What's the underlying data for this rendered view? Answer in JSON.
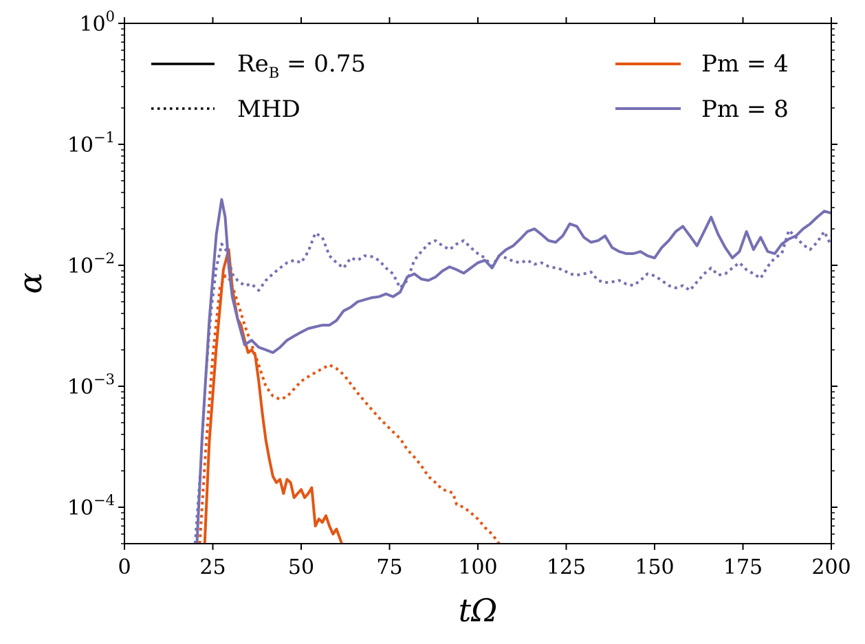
{
  "chart_data": {
    "type": "line",
    "title": "",
    "xlabel": "tΩ",
    "ylabel": "α",
    "xlim": [
      0,
      200
    ],
    "ylim": [
      5e-05,
      1
    ],
    "yscale": "log",
    "x_ticks": [
      {
        "value": 0,
        "label": "0"
      },
      {
        "value": 25,
        "label": "25"
      },
      {
        "value": 50,
        "label": "50"
      },
      {
        "value": 75,
        "label": "75"
      },
      {
        "value": 100,
        "label": "100"
      },
      {
        "value": 125,
        "label": "125"
      },
      {
        "value": 150,
        "label": "150"
      },
      {
        "value": 175,
        "label": "175"
      },
      {
        "value": 200,
        "label": "200"
      }
    ],
    "y_ticks": [
      {
        "value": 1,
        "base": "10",
        "exp": "0"
      },
      {
        "value": 0.1,
        "base": "10",
        "exp": "−1"
      },
      {
        "value": 0.01,
        "base": "10",
        "exp": "−2"
      },
      {
        "value": 0.001,
        "base": "10",
        "exp": "−3"
      },
      {
        "value": 0.0001,
        "base": "10",
        "exp": "−4"
      }
    ],
    "colors": {
      "Pm4": "#e35614",
      "Pm8": "#7570b3",
      "black": "#000000"
    },
    "legend_style": [
      {
        "style": "solid",
        "label_main": "Re",
        "label_sub": "B",
        "label_rest": " = 0.75"
      },
      {
        "style": "dotted",
        "label_main": "MHD",
        "label_sub": "",
        "label_rest": ""
      }
    ],
    "legend_color": [
      {
        "color": "#e35614",
        "label": "Pm = 4"
      },
      {
        "color": "#7570b3",
        "label": "Pm = 8"
      }
    ],
    "legend_placement": [
      "top-left",
      "top-right"
    ],
    "series": [
      {
        "name": "Pm = 4, Re_B = 0.75",
        "color": "#e35614",
        "style": "solid",
        "x": [
          22.7,
          24,
          26,
          28,
          29.5,
          30.5,
          32,
          33,
          34,
          35,
          36,
          37,
          38,
          39,
          40,
          41,
          42,
          43,
          44,
          45,
          46,
          47,
          48,
          49,
          50,
          51,
          52,
          53,
          54,
          55,
          56,
          57,
          58,
          59,
          60,
          61.5
        ],
        "y": [
          5e-05,
          0.00035,
          0.0021,
          0.0092,
          0.0135,
          0.0065,
          0.0036,
          0.0032,
          0.0024,
          0.0019,
          0.002,
          0.0018,
          0.0011,
          0.0006,
          0.00036,
          0.00025,
          0.00018,
          0.00016,
          0.00017,
          0.00013,
          0.00017,
          0.00016,
          0.00012,
          0.00013,
          0.00014,
          0.00012,
          0.00013,
          0.000145,
          7e-05,
          8e-05,
          7.5e-05,
          8.5e-05,
          7e-05,
          6e-05,
          6.6e-05,
          5e-05
        ]
      },
      {
        "name": "Pm = 4, MHD",
        "color": "#e35614",
        "style": "dotted",
        "x": [
          21.3,
          23,
          25,
          27,
          28.5,
          30,
          32,
          34,
          36,
          38,
          40,
          42,
          44,
          46,
          48,
          50,
          52,
          54,
          56,
          58,
          60,
          62,
          64,
          66,
          68,
          70,
          72,
          74,
          76,
          78,
          80,
          82,
          84,
          86,
          88,
          90,
          92,
          93,
          94,
          96,
          98,
          100,
          102,
          104,
          106
        ],
        "y": [
          5e-05,
          0.0003,
          0.0018,
          0.0065,
          0.0082,
          0.0075,
          0.005,
          0.0032,
          0.0022,
          0.0015,
          0.001,
          0.00083,
          0.00078,
          0.00082,
          0.00095,
          0.0011,
          0.0012,
          0.0013,
          0.0014,
          0.0015,
          0.0014,
          0.00125,
          0.00105,
          0.00088,
          0.00075,
          0.00064,
          0.00055,
          0.00048,
          0.00042,
          0.00037,
          0.0003,
          0.00026,
          0.00022,
          0.00018,
          0.00016,
          0.00014,
          0.000135,
          0.00013,
          0.000105,
          0.0001,
          9e-05,
          8e-05,
          6.8e-05,
          6e-05,
          5e-05
        ]
      },
      {
        "name": "Pm = 8, Re_B = 0.75",
        "color": "#7570b3",
        "style": "solid",
        "x": [
          20.5,
          22,
          24,
          26,
          27.5,
          28.5,
          29.5,
          30.5,
          32,
          34,
          36,
          38,
          40,
          42,
          44,
          46,
          48,
          50,
          52,
          54,
          56,
          58,
          60,
          62,
          64,
          66,
          68,
          70,
          72,
          74,
          76,
          78,
          80,
          82,
          84,
          86,
          88,
          90,
          92,
          94,
          96,
          98,
          100,
          102,
          104,
          106,
          108,
          110,
          112,
          114,
          116,
          118,
          120,
          122,
          124,
          126,
          128,
          130,
          132,
          134,
          136,
          138,
          140,
          142,
          144,
          146,
          148,
          150,
          152,
          154,
          156,
          158,
          160,
          162,
          164,
          166,
          168,
          170,
          172,
          174,
          176,
          178,
          180,
          182,
          184,
          186,
          188,
          190,
          192,
          194,
          196,
          198,
          200
        ],
        "y": [
          5e-05,
          0.0004,
          0.0035,
          0.018,
          0.035,
          0.025,
          0.01,
          0.0055,
          0.0036,
          0.0022,
          0.0024,
          0.0021,
          0.002,
          0.0019,
          0.0021,
          0.0024,
          0.0026,
          0.0028,
          0.003,
          0.0031,
          0.0032,
          0.0032,
          0.0035,
          0.0042,
          0.0045,
          0.005,
          0.0052,
          0.0054,
          0.0055,
          0.0058,
          0.0055,
          0.006,
          0.008,
          0.0085,
          0.0077,
          0.0075,
          0.008,
          0.009,
          0.0097,
          0.0092,
          0.0086,
          0.0095,
          0.0105,
          0.011,
          0.0095,
          0.012,
          0.0135,
          0.0145,
          0.0165,
          0.019,
          0.02,
          0.018,
          0.016,
          0.0155,
          0.0175,
          0.022,
          0.021,
          0.017,
          0.0155,
          0.016,
          0.0175,
          0.014,
          0.013,
          0.0125,
          0.0125,
          0.013,
          0.012,
          0.0115,
          0.014,
          0.016,
          0.019,
          0.021,
          0.0175,
          0.0145,
          0.019,
          0.025,
          0.018,
          0.014,
          0.0115,
          0.013,
          0.019,
          0.0135,
          0.017,
          0.013,
          0.0125,
          0.015,
          0.0165,
          0.0175,
          0.02,
          0.022,
          0.025,
          0.028,
          0.027
        ]
      },
      {
        "name": "Pm = 8, MHD",
        "color": "#7570b3",
        "style": "dotted",
        "x": [
          20,
          21.5,
          23,
          24.5,
          26,
          27.5,
          29,
          30.5,
          32,
          34,
          36,
          38,
          40,
          42,
          44,
          46,
          48,
          50,
          52,
          54,
          56,
          58,
          60,
          62,
          64,
          66,
          68,
          70,
          72,
          74,
          76,
          78,
          80,
          82,
          84,
          86,
          88,
          90,
          92,
          94,
          96,
          98,
          100,
          102,
          104,
          106,
          108,
          110,
          112,
          114,
          116,
          118,
          120,
          122,
          124,
          126,
          128,
          130,
          132,
          134,
          136,
          138,
          140,
          142,
          144,
          146,
          148,
          150,
          152,
          154,
          156,
          158,
          160,
          162,
          164,
          166,
          168,
          170,
          172,
          174,
          176,
          178,
          180,
          182,
          184,
          186,
          188,
          190,
          192,
          194,
          196,
          198,
          200
        ],
        "y": [
          5e-05,
          0.0002,
          0.0012,
          0.0042,
          0.0095,
          0.015,
          0.013,
          0.0085,
          0.0075,
          0.0068,
          0.007,
          0.0062,
          0.0075,
          0.0085,
          0.0095,
          0.0105,
          0.011,
          0.0105,
          0.013,
          0.0185,
          0.017,
          0.012,
          0.0105,
          0.0095,
          0.0115,
          0.011,
          0.012,
          0.0118,
          0.011,
          0.0095,
          0.0085,
          0.0065,
          0.0075,
          0.011,
          0.013,
          0.015,
          0.016,
          0.0145,
          0.0135,
          0.015,
          0.016,
          0.014,
          0.0125,
          0.0115,
          0.0098,
          0.012,
          0.0115,
          0.0108,
          0.0105,
          0.011,
          0.0102,
          0.0105,
          0.0098,
          0.0095,
          0.0092,
          0.0085,
          0.0083,
          0.0085,
          0.0088,
          0.0075,
          0.0072,
          0.0073,
          0.0075,
          0.007,
          0.0068,
          0.0075,
          0.0085,
          0.0082,
          0.0075,
          0.0068,
          0.0065,
          0.0068,
          0.0062,
          0.0073,
          0.0085,
          0.0095,
          0.0083,
          0.0085,
          0.0095,
          0.0105,
          0.0092,
          0.0085,
          0.0078,
          0.0098,
          0.0115,
          0.0125,
          0.0195,
          0.017,
          0.0148,
          0.0135,
          0.0155,
          0.019,
          0.0145
        ]
      }
    ]
  }
}
